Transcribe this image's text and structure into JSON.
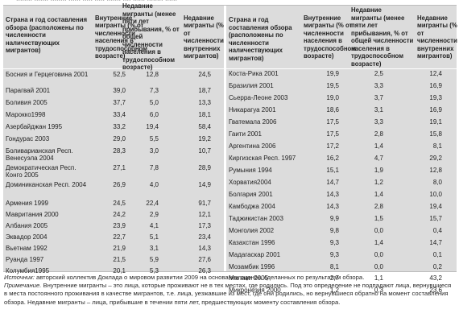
{
  "header_cutoff": "........ ....... ........ ...... ..... ..... ....... .... ...... ........ ......",
  "columns": {
    "country": "Страна и год составления обзора (расположены по численности наличествующих мигрантов)",
    "internal": "Внутренние мигранты (% от численности населения в трудоспособном возрасте)",
    "recent": "Недавние мигранты (менее пяти лет прибывания, % от общей численности населения в трудоспособном возрасте)",
    "recent_share": "Недавние мигранты (% от численности внутренних мигрантов)"
  },
  "left_rows": [
    {
      "country": "Босния и Герцеговина 2001",
      "internal": "52,5",
      "recent": "12,8",
      "share": "24,5"
    },
    {
      "country": "Парагвай 2001",
      "internal": "39,0",
      "recent": "7,3",
      "share": "18,7"
    },
    {
      "country": "Боливия 2005",
      "internal": "37,7",
      "recent": "5,0",
      "share": "13,3"
    },
    {
      "country": "Марокко1998",
      "internal": "33,4",
      "recent": "6,0",
      "share": "18,1"
    },
    {
      "country": "Азербайджан 1995",
      "internal": "33,2",
      "recent": "19,4",
      "share": "58,4"
    },
    {
      "country": "Гондурас 2003",
      "internal": "29,0",
      "recent": "5,5",
      "share": "19,2"
    },
    {
      "country": "Боливарианская Респ. Венесуэла 2004",
      "internal": "28,3",
      "recent": "3,0",
      "share": "10,7"
    },
    {
      "country": "Демократическая Респ. Конго 2005",
      "internal": "27,1",
      "recent": "7,8",
      "share": "28,9"
    },
    {
      "country": "Доминиканская Респ. 2004",
      "internal": "26,9",
      "recent": "4,0",
      "share": "14,9"
    },
    {
      "country": "Армения 1999",
      "internal": "24,5",
      "recent": "22,4",
      "share": "91,7"
    },
    {
      "country": "Мавритания 2000",
      "internal": "24,2",
      "recent": "2,9",
      "share": "12,1"
    },
    {
      "country": "Албания 2005",
      "internal": "23,9",
      "recent": "4,1",
      "share": "17,3"
    },
    {
      "country": "Эквадор 2004",
      "internal": "22,7",
      "recent": "5,1",
      "share": "23,4"
    },
    {
      "country": "Вьетнам 1992",
      "internal": "21,9",
      "recent": "3,1",
      "share": "14,3"
    },
    {
      "country": "Руанда 1997",
      "internal": "21,5",
      "recent": "5,9",
      "share": "27,6"
    },
    {
      "country": "Колумбия1995",
      "internal": "20,1",
      "recent": "5,3",
      "share": "26,3"
    }
  ],
  "right_rows": [
    {
      "country": "Коста-Рика 2001",
      "internal": "19,9",
      "recent": "2,5",
      "share": "12,4"
    },
    {
      "country": "Бразилия 2001",
      "internal": "19,5",
      "recent": "3,3",
      "share": "16,9"
    },
    {
      "country": "Сьерра-Леоне 2003",
      "internal": "19,0",
      "recent": "3,7",
      "share": "19,3"
    },
    {
      "country": "Никарагуа 2001",
      "internal": "18,6",
      "recent": "3,1",
      "share": "16,9"
    },
    {
      "country": "Гватемала 2006",
      "internal": "17,5",
      "recent": "3,3",
      "share": "19,1"
    },
    {
      "country": "Гаити 2001",
      "internal": "17,5",
      "recent": "2,8",
      "share": "15,8"
    },
    {
      "country": "Аргентина 2006",
      "internal": "17,2",
      "recent": "1,4",
      "share": "8,1"
    },
    {
      "country": "Киргизская Респ. 1997",
      "internal": "16,2",
      "recent": "4,7",
      "share": "29,2"
    },
    {
      "country": "Румыния 1994",
      "internal": "15,1",
      "recent": "1,9",
      "share": "12,8"
    },
    {
      "country": "Хорватия2004",
      "internal": "14,7",
      "recent": "1,2",
      "share": "8,0"
    },
    {
      "country": "Болгария 2001",
      "internal": "14,3",
      "recent": "1,4",
      "share": "10,0"
    },
    {
      "country": "Камбоджа 2004",
      "internal": "14,3",
      "recent": "2,8",
      "share": "19,4"
    },
    {
      "country": "Таджикистан 2003",
      "internal": "9,9",
      "recent": "1,5",
      "share": "15,7"
    },
    {
      "country": "Монголия 2002",
      "internal": "9,8",
      "recent": "0,0",
      "share": "0,4"
    },
    {
      "country": "Казахстан 1996",
      "internal": "9,3",
      "recent": "1,4",
      "share": "14,7"
    },
    {
      "country": "Мадагаскар 2001",
      "internal": "9,3",
      "recent": "0,0",
      "share": "0,1"
    },
    {
      "country": "Мозамбик 1996",
      "internal": "8,1",
      "recent": "0,0",
      "share": "0,2"
    },
    {
      "country": "Малави 2005",
      "internal": "2,7",
      "recent": "1,1",
      "share": "43,2"
    },
    {
      "country": "Микронезия 2000",
      "internal": "1,2",
      "recent": "0,3",
      "share": "23,6"
    }
  ],
  "notes": {
    "source_label": "Источник:",
    "source_text": " авторский коллектив Доклада о мировом развитии 2009 на основании оценок, сделанных по результатам обзора.",
    "note_label": "Примечание.",
    "note_text": " Внутренние мигранты – это лица, которые проживают не в тех местах, где родились. Под это определение не подпадают лица, вернувшиеся в места постоянного проживания в качестве мигрантов, т.е. лица, уезжавшие из мест, где они родились, но вернувшиеся обратно на момент составления обзора. Недавние мигранты – лица, прибывшие в течении пяти лет, предшествующих моменту составления обзора."
  }
}
